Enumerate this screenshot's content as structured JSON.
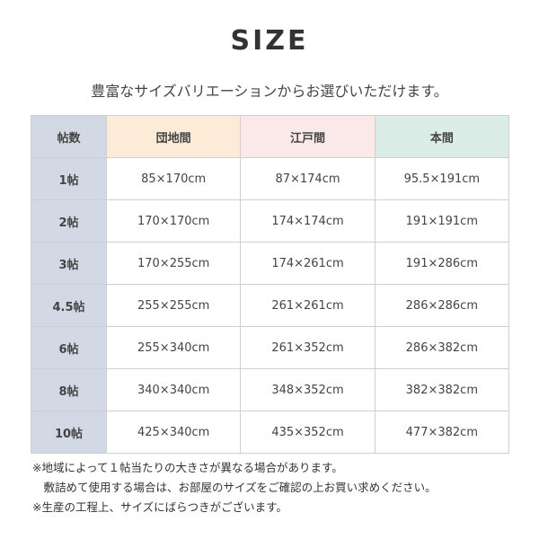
{
  "title": "SIZE",
  "subtitle": "豊富なサイズバリエーションからお選びいただけます。",
  "colors": {
    "label_col": "#d2d9e5",
    "danchima": "#fcebd7",
    "edoma": "#fbe9e9",
    "honma": "#dcede7"
  },
  "table": {
    "headers": [
      "帖数",
      "団地間",
      "江戸間",
      "本間"
    ],
    "rows": [
      [
        "1帖",
        "85×170cm",
        "87×174cm",
        "95.5×191cm"
      ],
      [
        "2帖",
        "170×170cm",
        "174×174cm",
        "191×191cm"
      ],
      [
        "3帖",
        "170×255cm",
        "174×261cm",
        "191×286cm"
      ],
      [
        "4.5帖",
        "255×255cm",
        "261×261cm",
        "286×286cm"
      ],
      [
        "6帖",
        "255×340cm",
        "261×352cm",
        "286×382cm"
      ],
      [
        "8帖",
        "340×340cm",
        "348×352cm",
        "382×382cm"
      ],
      [
        "10帖",
        "425×340cm",
        "435×352cm",
        "477×382cm"
      ]
    ]
  },
  "notes": [
    "※地域によって１帖当たりの大きさが異なる場合があります。",
    "　敷詰めて使用する場合は、お部屋のサイズをご確認の上お買い求めください。",
    "※生産の工程上、サイズにばらつきがございます。"
  ]
}
